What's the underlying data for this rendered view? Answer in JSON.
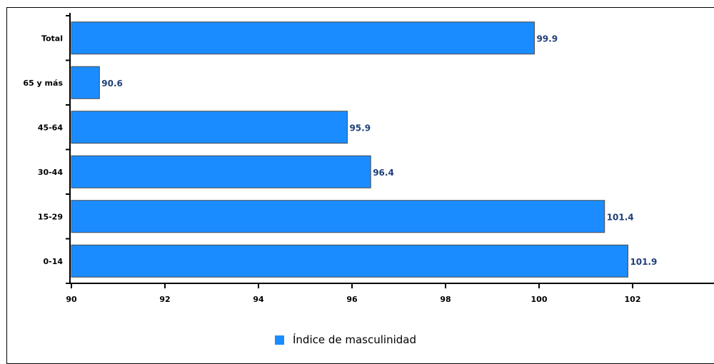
{
  "chart_data": {
    "type": "bar",
    "orientation": "horizontal",
    "categories": [
      "Total",
      "65 y más",
      "45-64",
      "30-44",
      "15-29",
      "0-14"
    ],
    "series": [
      {
        "name": "Índice de masculinidad",
        "values": [
          99.9,
          90.6,
          95.9,
          96.4,
          101.4,
          101.9
        ],
        "color": "#1a8cff"
      }
    ],
    "value_labels": [
      "99.9",
      "90.6",
      "95.9",
      "96.4",
      "101.4",
      "101.9"
    ],
    "xlim": [
      90,
      104
    ],
    "x_ticks": [
      90,
      92,
      94,
      96,
      98,
      100,
      102,
      104
    ],
    "grid": false,
    "legend": "bottom-center"
  }
}
